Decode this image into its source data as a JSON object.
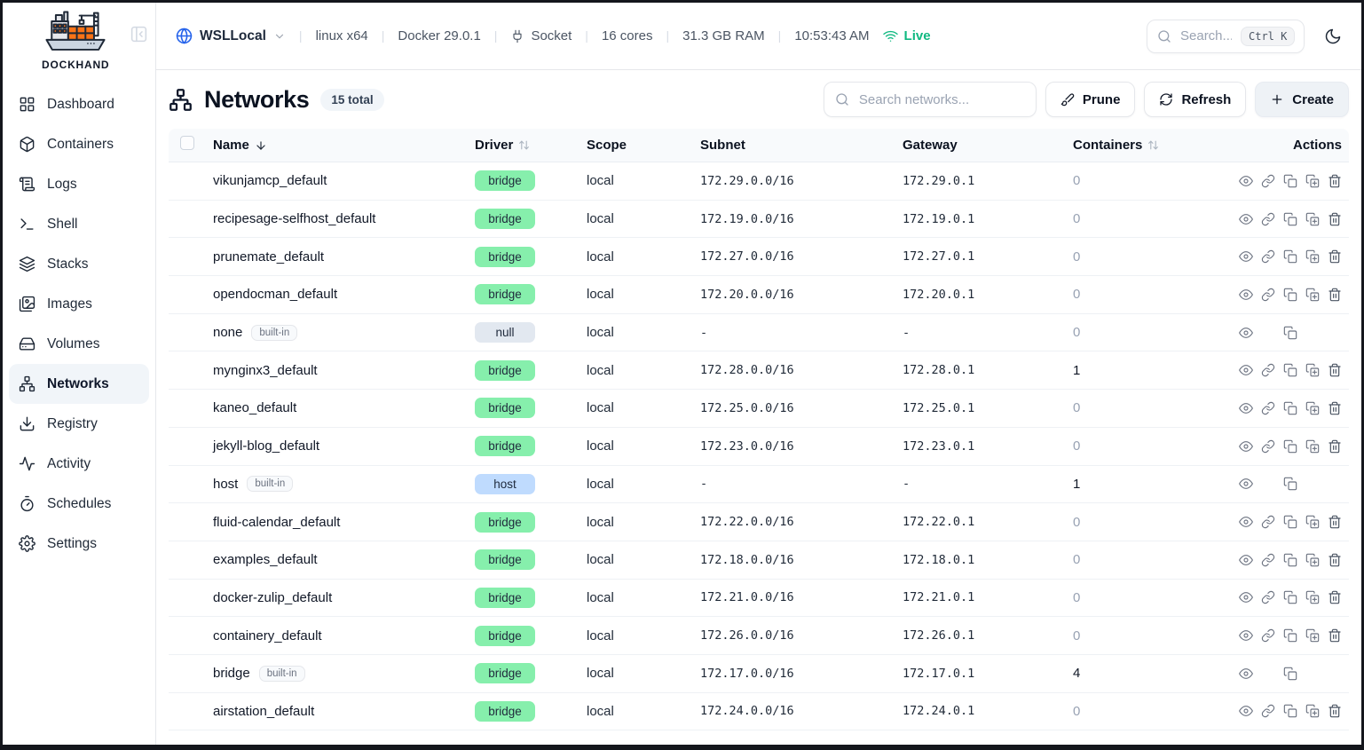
{
  "sidebar": {
    "brand": "DOCKHAND",
    "active": "Networks",
    "items": [
      {
        "icon": "grid",
        "label": "Dashboard"
      },
      {
        "icon": "box",
        "label": "Containers"
      },
      {
        "icon": "scroll",
        "label": "Logs"
      },
      {
        "icon": "terminal",
        "label": "Shell"
      },
      {
        "icon": "layers",
        "label": "Stacks"
      },
      {
        "icon": "images",
        "label": "Images"
      },
      {
        "icon": "drive",
        "label": "Volumes"
      },
      {
        "icon": "network",
        "label": "Networks"
      },
      {
        "icon": "download",
        "label": "Registry"
      },
      {
        "icon": "activity",
        "label": "Activity"
      },
      {
        "icon": "timer",
        "label": "Schedules"
      },
      {
        "icon": "gear",
        "label": "Settings"
      }
    ]
  },
  "topbar": {
    "host": "WSLLocal",
    "platform": "linux x64",
    "docker_version": "Docker 29.0.1",
    "connection_label": "Socket",
    "cores": "16 cores",
    "ram": "31.3 GB RAM",
    "time": "10:53:43 AM",
    "live_label": "Live",
    "search_placeholder": "Search...",
    "search_shortcut": "Ctrl K"
  },
  "page": {
    "title": "Networks",
    "total_badge": "15 total",
    "search_placeholder": "Search networks...",
    "prune_label": "Prune",
    "refresh_label": "Refresh",
    "create_label": "Create"
  },
  "table": {
    "headers": {
      "name": "Name",
      "driver": "Driver",
      "scope": "Scope",
      "subnet": "Subnet",
      "gateway": "Gateway",
      "containers": "Containers",
      "actions": "Actions"
    },
    "builtin_label": "built-in",
    "rows": [
      {
        "name": "vikunjamcp_default",
        "builtin": false,
        "driver": "bridge",
        "driver_style": "green",
        "scope": "local",
        "subnet": "172.29.0.0/16",
        "gateway": "172.29.0.1",
        "containers": "0",
        "actions": [
          "view",
          "link",
          "copy",
          "copy-add",
          "delete"
        ]
      },
      {
        "name": "recipesage-selfhost_default",
        "builtin": false,
        "driver": "bridge",
        "driver_style": "green",
        "scope": "local",
        "subnet": "172.19.0.0/16",
        "gateway": "172.19.0.1",
        "containers": "0",
        "actions": [
          "view",
          "link",
          "copy",
          "copy-add",
          "delete"
        ]
      },
      {
        "name": "prunemate_default",
        "builtin": false,
        "driver": "bridge",
        "driver_style": "green",
        "scope": "local",
        "subnet": "172.27.0.0/16",
        "gateway": "172.27.0.1",
        "containers": "0",
        "actions": [
          "view",
          "link",
          "copy",
          "copy-add",
          "delete"
        ]
      },
      {
        "name": "opendocman_default",
        "builtin": false,
        "driver": "bridge",
        "driver_style": "green",
        "scope": "local",
        "subnet": "172.20.0.0/16",
        "gateway": "172.20.0.1",
        "containers": "0",
        "actions": [
          "view",
          "link",
          "copy",
          "copy-add",
          "delete"
        ]
      },
      {
        "name": "none",
        "builtin": true,
        "driver": "null",
        "driver_style": "gray",
        "scope": "local",
        "subnet": "-",
        "gateway": "-",
        "containers": "0",
        "actions": [
          "view",
          null,
          "copy",
          null,
          null
        ]
      },
      {
        "name": "mynginx3_default",
        "builtin": false,
        "driver": "bridge",
        "driver_style": "green",
        "scope": "local",
        "subnet": "172.28.0.0/16",
        "gateway": "172.28.0.1",
        "containers": "1",
        "actions": [
          "view",
          "link",
          "copy",
          "copy-add",
          "delete"
        ]
      },
      {
        "name": "kaneo_default",
        "builtin": false,
        "driver": "bridge",
        "driver_style": "green",
        "scope": "local",
        "subnet": "172.25.0.0/16",
        "gateway": "172.25.0.1",
        "containers": "0",
        "actions": [
          "view",
          "link",
          "copy",
          "copy-add",
          "delete"
        ]
      },
      {
        "name": "jekyll-blog_default",
        "builtin": false,
        "driver": "bridge",
        "driver_style": "green",
        "scope": "local",
        "subnet": "172.23.0.0/16",
        "gateway": "172.23.0.1",
        "containers": "0",
        "actions": [
          "view",
          "link",
          "copy",
          "copy-add",
          "delete"
        ]
      },
      {
        "name": "host",
        "builtin": true,
        "driver": "host",
        "driver_style": "blue",
        "scope": "local",
        "subnet": "-",
        "gateway": "-",
        "containers": "1",
        "actions": [
          "view",
          null,
          "copy",
          null,
          null
        ]
      },
      {
        "name": "fluid-calendar_default",
        "builtin": false,
        "driver": "bridge",
        "driver_style": "green",
        "scope": "local",
        "subnet": "172.22.0.0/16",
        "gateway": "172.22.0.1",
        "containers": "0",
        "actions": [
          "view",
          "link",
          "copy",
          "copy-add",
          "delete"
        ]
      },
      {
        "name": "examples_default",
        "builtin": false,
        "driver": "bridge",
        "driver_style": "green",
        "scope": "local",
        "subnet": "172.18.0.0/16",
        "gateway": "172.18.0.1",
        "containers": "0",
        "actions": [
          "view",
          "link",
          "copy",
          "copy-add",
          "delete"
        ]
      },
      {
        "name": "docker-zulip_default",
        "builtin": false,
        "driver": "bridge",
        "driver_style": "green",
        "scope": "local",
        "subnet": "172.21.0.0/16",
        "gateway": "172.21.0.1",
        "containers": "0",
        "actions": [
          "view",
          "link",
          "copy",
          "copy-add",
          "delete"
        ]
      },
      {
        "name": "containery_default",
        "builtin": false,
        "driver": "bridge",
        "driver_style": "green",
        "scope": "local",
        "subnet": "172.26.0.0/16",
        "gateway": "172.26.0.1",
        "containers": "0",
        "actions": [
          "view",
          "link",
          "copy",
          "copy-add",
          "delete"
        ]
      },
      {
        "name": "bridge",
        "builtin": true,
        "driver": "bridge",
        "driver_style": "green",
        "scope": "local",
        "subnet": "172.17.0.0/16",
        "gateway": "172.17.0.1",
        "containers": "4",
        "actions": [
          "view",
          null,
          "copy",
          null,
          null
        ]
      },
      {
        "name": "airstation_default",
        "builtin": false,
        "driver": "bridge",
        "driver_style": "green",
        "scope": "local",
        "subnet": "172.24.0.0/16",
        "gateway": "172.24.0.1",
        "containers": "0",
        "actions": [
          "view",
          "link",
          "copy",
          "copy-add",
          "delete"
        ]
      }
    ]
  },
  "colors": {
    "badge_bridge": "#86efac",
    "badge_null": "#e2e8f0",
    "badge_host": "#bfdbfe",
    "live_green": "#10b981",
    "brand_orange": "#f97316",
    "accent_blue": "#2563eb"
  }
}
